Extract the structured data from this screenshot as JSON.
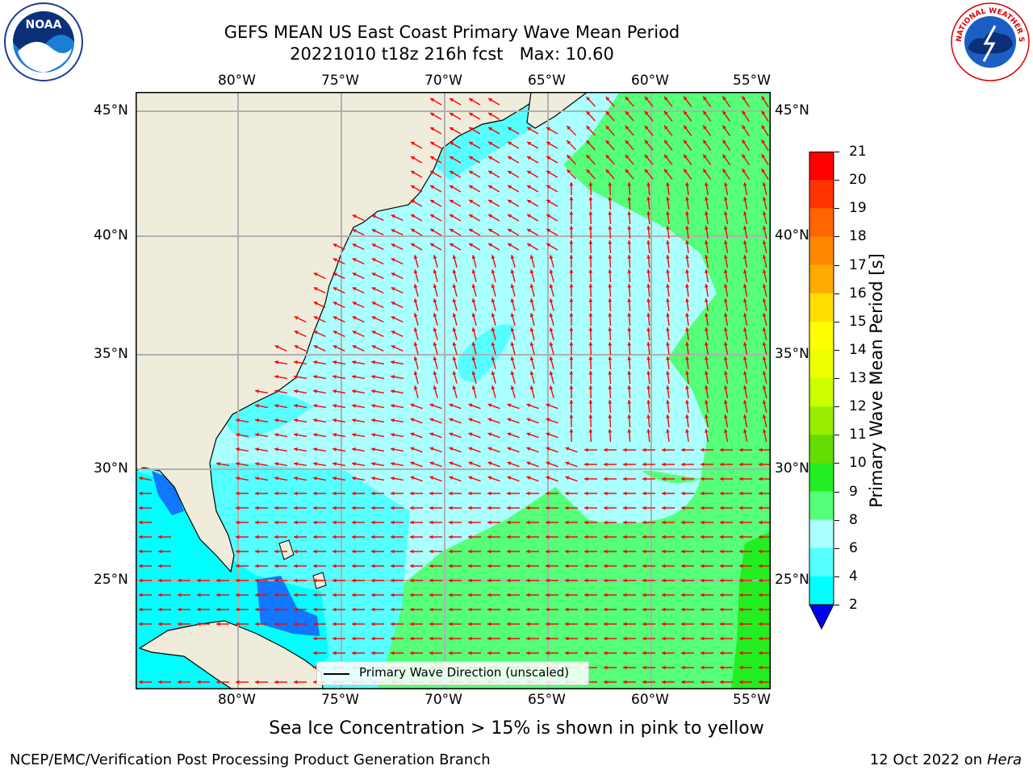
{
  "header": {
    "title_line1": "GEFS MEAN US East Coast Primary Wave Mean Period",
    "title_line2": "20221010 t18z 216h fcst   Max: 10.60"
  },
  "logos": {
    "left": {
      "name": "noaa-logo",
      "text": "NOAA"
    },
    "right": {
      "name": "nws-logo",
      "text": "NATIONAL WEATHER SERVICE"
    }
  },
  "map": {
    "lon_labels": [
      "80°W",
      "75°W",
      "70°W",
      "65°W",
      "60°W",
      "55°W"
    ],
    "lat_labels": [
      "45°N",
      "40°N",
      "35°N",
      "30°N",
      "25°N"
    ],
    "legend_text": "Primary Wave Direction (unscaled)",
    "land_color": "#efecdc",
    "arrow_color": "#ff0000",
    "grid_color": "#b0b0b0"
  },
  "colorbar": {
    "label": "Primary Wave Mean Period [s]",
    "ticks": [
      "21",
      "20",
      "19",
      "18",
      "17",
      "16",
      "15",
      "14",
      "13",
      "12",
      "11",
      "10",
      "9",
      "8",
      "6",
      "4",
      "2"
    ],
    "colors": [
      "#ff0000",
      "#ff3300",
      "#ff6600",
      "#ff8800",
      "#ffaa00",
      "#ffdd00",
      "#ffff00",
      "#eeff00",
      "#ccff00",
      "#99ee00",
      "#66dd00",
      "#22ee22",
      "#55ff77",
      "#aaffff",
      "#55ffff",
      "#00ffff",
      "#1177ff"
    ],
    "under_color": "#0000ee"
  },
  "footer": {
    "note": "Sea Ice Concentration > 15% is shown in pink to yellow",
    "left": "NCEP/EMC/Verification Post Processing Product Generation Branch",
    "right_date": "12 Oct 2022 on ",
    "right_host": "Hera"
  }
}
